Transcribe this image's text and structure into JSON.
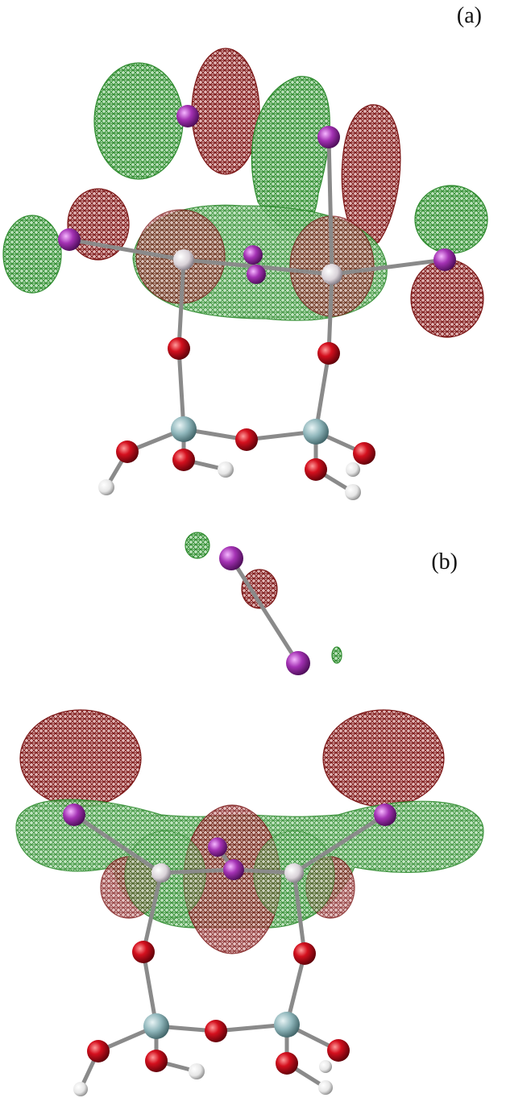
{
  "figure": {
    "panels": [
      {
        "label": "(a)"
      },
      {
        "label": "(b)"
      }
    ],
    "colors": {
      "lobe_green": "#2e8b2e",
      "lobe_red": "#7a1414",
      "oxygen": "#c8101e",
      "silicon": "#8fb6bb",
      "hydrogen": "#f2f2f2",
      "iodine": "#9a2fa8",
      "metal": "#d9d2d8",
      "bond": "#8a8a8a"
    }
  }
}
